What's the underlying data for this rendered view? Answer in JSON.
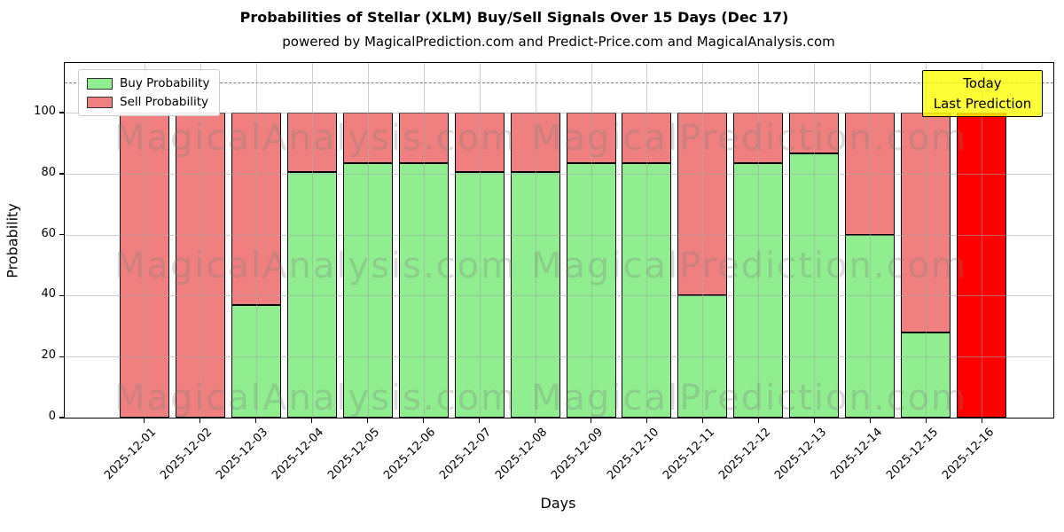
{
  "title": "Probabilities of Stellar (XLM) Buy/Sell Signals Over 15 Days (Dec 17)",
  "subtitle": "powered by MagicalPrediction.com and Predict-Price.com and MagicalAnalysis.com",
  "legend": {
    "buy_label": "Buy Probability",
    "sell_label": "Sell Probability"
  },
  "annotation": {
    "line1": "Today",
    "line2": "Last Prediction"
  },
  "watermarks": {
    "left_text": "MagicalAnalysis.com",
    "right_text": "MagicalPrediction.com"
  },
  "axes": {
    "xlabel": "Days",
    "ylabel": "Probability",
    "yticks": [
      0,
      20,
      40,
      60,
      80,
      100
    ],
    "ymax": 116.3,
    "dashed_line_y": 110
  },
  "colors": {
    "buy_green": "#90EE90",
    "sell_red": "#F08080",
    "today_red": "#FF0000",
    "annotation_yellow": "#FFFF00",
    "grid_gray": "#B0B0B0",
    "dashed_gray": "#7A7A7A"
  },
  "chart_data": {
    "type": "bar",
    "stacked": true,
    "title": "Probabilities of Stellar (XLM) Buy/Sell Signals Over 15 Days (Dec 17)",
    "xlabel": "Days",
    "ylabel": "Probability",
    "ylim": [
      0,
      116.3
    ],
    "grid": true,
    "legend_position": "upper left",
    "dashed_line_y": 110,
    "categories": [
      "2025-12-01",
      "2025-12-02",
      "2025-12-03",
      "2025-12-04",
      "2025-12-05",
      "2025-12-06",
      "2025-12-07",
      "2025-12-08",
      "2025-12-09",
      "2025-12-10",
      "2025-12-11",
      "2025-12-12",
      "2025-12-13",
      "2025-12-14",
      "2025-12-15",
      "2025-12-16"
    ],
    "series": [
      {
        "name": "Buy Probability",
        "color": "#90EE90",
        "values": [
          0,
          0,
          37,
          80.5,
          83.5,
          83.5,
          80.5,
          80.5,
          83.5,
          83.5,
          40,
          83.5,
          86.5,
          60,
          28,
          0
        ]
      },
      {
        "name": "Sell Probability",
        "color": "#F08080",
        "values": [
          100,
          100,
          63,
          19.5,
          16.5,
          16.5,
          19.5,
          19.5,
          16.5,
          16.5,
          60,
          16.5,
          13.5,
          40,
          72,
          100
        ]
      }
    ],
    "today_bar": {
      "index": 15,
      "sell_color": "#FF0000",
      "label": "Today / Last Prediction"
    }
  }
}
